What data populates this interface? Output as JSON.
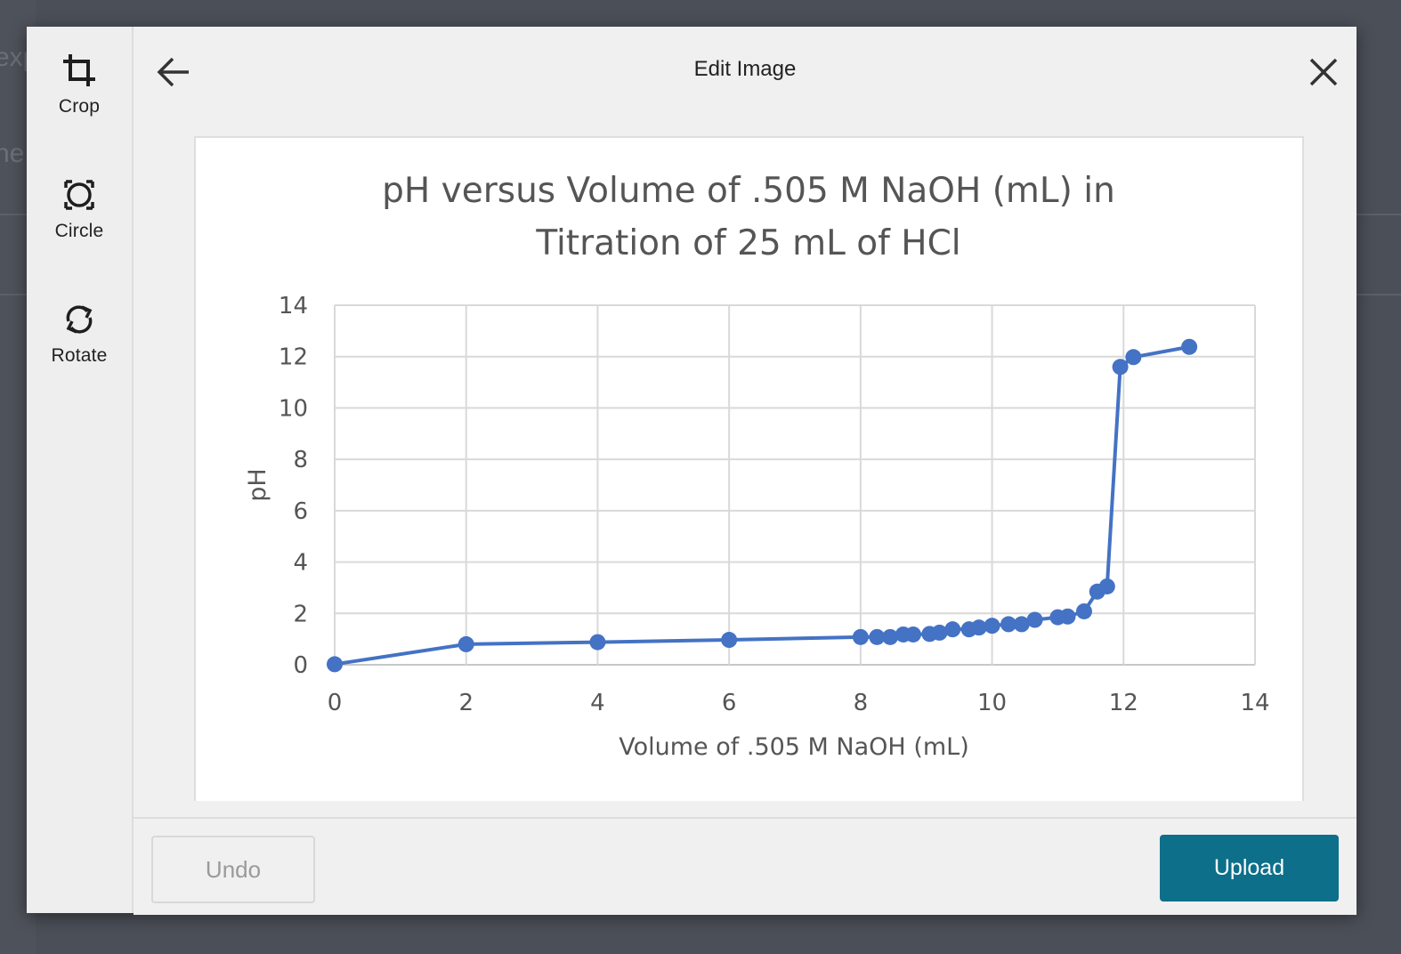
{
  "background": {
    "fragments": [
      "exp",
      "ne"
    ]
  },
  "toolbar": {
    "items": [
      {
        "label": "Crop",
        "icon": "crop-icon"
      },
      {
        "label": "Circle",
        "icon": "circle-select-icon"
      },
      {
        "label": "Rotate",
        "icon": "rotate-icon"
      }
    ]
  },
  "header": {
    "title": "Edit Image",
    "back_icon": "arrow-left-icon",
    "close_icon": "close-icon"
  },
  "footer": {
    "undo_label": "Undo",
    "upload_label": "Upload"
  },
  "colors": {
    "accent": "#0e6f8a",
    "series": "#4472c4",
    "overlay": "#4b4f57"
  },
  "chart_data": {
    "type": "scatter",
    "title_lines": [
      "pH versus Volume of .505 M NaOH (mL) in",
      "Titration of 25 mL of HCl"
    ],
    "xlabel": "Volume of .505 M NaOH (mL)",
    "ylabel": "pH",
    "xlim": [
      0,
      14
    ],
    "ylim": [
      0,
      14
    ],
    "xticks": [
      "0",
      "2",
      "4",
      "6",
      "8",
      "10",
      "12",
      "14"
    ],
    "yticks": [
      "0",
      "2",
      "4",
      "6",
      "8",
      "10",
      "12",
      "14"
    ],
    "grid": true,
    "legend": "none",
    "series": [
      {
        "points": [
          [
            0,
            0.02
          ],
          [
            2,
            0.8
          ],
          [
            4,
            0.88
          ],
          [
            6,
            0.97
          ],
          [
            8,
            1.08
          ],
          [
            8.25,
            1.08
          ],
          [
            8.45,
            1.08
          ],
          [
            8.65,
            1.18
          ],
          [
            8.8,
            1.18
          ],
          [
            9.05,
            1.2
          ],
          [
            9.2,
            1.25
          ],
          [
            9.4,
            1.38
          ],
          [
            9.65,
            1.38
          ],
          [
            9.8,
            1.45
          ],
          [
            10.0,
            1.52
          ],
          [
            10.25,
            1.58
          ],
          [
            10.45,
            1.58
          ],
          [
            10.65,
            1.75
          ],
          [
            11.0,
            1.85
          ],
          [
            11.15,
            1.88
          ],
          [
            11.4,
            2.08
          ],
          [
            11.6,
            2.85
          ],
          [
            11.75,
            3.05
          ],
          [
            11.95,
            11.6
          ],
          [
            12.15,
            11.98
          ],
          [
            13.0,
            12.38
          ]
        ]
      }
    ]
  }
}
